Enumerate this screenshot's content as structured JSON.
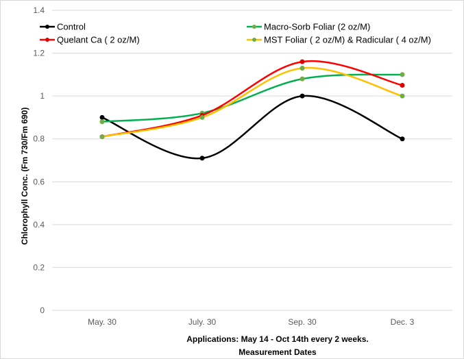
{
  "chart_data": {
    "type": "line",
    "title": "",
    "xlabel_lines": [
      "Applications: May 14 - Oct 14th every 2 weeks.",
      "Measurement Dates"
    ],
    "ylabel": "Chlorophyll Conc. (Fm 730/Fm 690)",
    "categories": [
      "May. 30",
      "July. 30",
      "Sep. 30",
      "Dec. 3"
    ],
    "ylim": [
      0,
      1.4
    ],
    "yticks": [
      "0",
      "0.2",
      "0.4",
      "0.6",
      "0.8",
      "1",
      "1.2",
      "1.4"
    ],
    "grid": "horizontal",
    "legend_position": "top",
    "smooth": true,
    "series": [
      {
        "name": "Control",
        "color": "#000000",
        "marker_color": "#000000",
        "values": [
          0.9,
          0.71,
          1.0,
          0.8
        ]
      },
      {
        "name": "Macro-Sorb Foliar (2 oz/M)",
        "color": "#00b050",
        "marker_color": "#70ad47",
        "values": [
          0.88,
          0.92,
          1.08,
          1.1
        ]
      },
      {
        "name": "Quelant Ca ( 2 oz/M)",
        "color": "#ff0000",
        "marker_color": "#e00000",
        "values": [
          0.81,
          0.91,
          1.16,
          1.05
        ]
      },
      {
        "name": "MST Foliar ( 2 oz/M) & Radicular ( 4 oz/M)",
        "color": "#ffc000",
        "marker_color": "#70ad47",
        "values": [
          0.81,
          0.9,
          1.13,
          1.0
        ]
      }
    ]
  }
}
